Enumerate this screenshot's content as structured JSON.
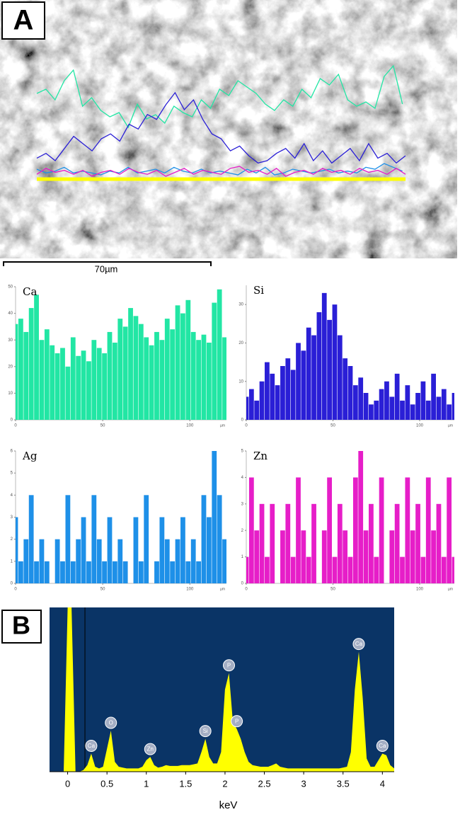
{
  "labels": {
    "panel_a": "A",
    "panel_b": "B",
    "scale_bar": "70µm"
  },
  "chart_data": [
    {
      "type": "bar",
      "title": "Ca",
      "color": "#22e6a4",
      "xlabel": "µm",
      "xlim": [
        0,
        121
      ],
      "ylim": [
        0,
        50
      ],
      "xticks": [
        0,
        50,
        100
      ],
      "yticks": [
        0,
        10,
        20,
        30,
        40,
        50
      ],
      "x": [
        0,
        3,
        6,
        9,
        12,
        15,
        18,
        21,
        24,
        27,
        30,
        33,
        36,
        39,
        42,
        45,
        48,
        51,
        54,
        57,
        60,
        63,
        66,
        69,
        72,
        75,
        78,
        81,
        84,
        87,
        90,
        93,
        96,
        99,
        102,
        105,
        108,
        111,
        114,
        117,
        120
      ],
      "values": [
        36,
        38,
        33,
        42,
        47,
        30,
        34,
        28,
        25,
        27,
        20,
        31,
        24,
        26,
        22,
        30,
        27,
        25,
        33,
        29,
        38,
        35,
        42,
        39,
        36,
        31,
        28,
        33,
        30,
        38,
        34,
        43,
        40,
        45,
        33,
        30,
        32,
        29,
        44,
        49,
        31
      ]
    },
    {
      "type": "bar",
      "title": "Si",
      "color": "#2a1fd6",
      "xlabel": "µm",
      "xlim": [
        0,
        120
      ],
      "ylim": [
        0,
        35
      ],
      "xticks": [
        0,
        50,
        100
      ],
      "yticks": [
        0,
        10,
        20,
        30
      ],
      "x": [
        0,
        3,
        6,
        9,
        12,
        15,
        18,
        21,
        24,
        27,
        30,
        33,
        36,
        39,
        42,
        45,
        48,
        51,
        54,
        57,
        60,
        63,
        66,
        69,
        72,
        75,
        78,
        81,
        84,
        87,
        90,
        93,
        96,
        99,
        102,
        105,
        108,
        111,
        114,
        117,
        120
      ],
      "values": [
        6,
        8,
        5,
        10,
        15,
        12,
        9,
        14,
        16,
        13,
        20,
        18,
        24,
        22,
        28,
        33,
        26,
        30,
        22,
        16,
        14,
        9,
        11,
        7,
        4,
        5,
        8,
        10,
        6,
        12,
        5,
        9,
        4,
        7,
        10,
        5,
        12,
        6,
        8,
        4,
        7
      ]
    },
    {
      "type": "bar",
      "title": "Ag",
      "color": "#1e90e8",
      "xlabel": "µm",
      "xlim": [
        0,
        121
      ],
      "ylim": [
        0,
        6
      ],
      "xticks": [
        0,
        50,
        100
      ],
      "yticks": [
        0,
        1,
        2,
        3,
        4,
        5,
        6
      ],
      "x": [
        0,
        3,
        6,
        9,
        12,
        15,
        18,
        21,
        24,
        27,
        30,
        33,
        36,
        39,
        42,
        45,
        48,
        51,
        54,
        57,
        60,
        63,
        66,
        69,
        72,
        75,
        78,
        81,
        84,
        87,
        90,
        93,
        96,
        99,
        102,
        105,
        108,
        111,
        114,
        117,
        120
      ],
      "values": [
        3,
        1,
        2,
        4,
        1,
        2,
        1,
        0,
        2,
        1,
        4,
        1,
        2,
        3,
        1,
        4,
        2,
        1,
        3,
        1,
        2,
        1,
        0,
        3,
        1,
        4,
        0,
        1,
        3,
        2,
        1,
        2,
        3,
        1,
        2,
        1,
        4,
        3,
        6,
        4,
        2
      ]
    },
    {
      "type": "bar",
      "title": "Zn",
      "color": "#e61ec8",
      "xlabel": "µm",
      "xlim": [
        0,
        120
      ],
      "ylim": [
        0,
        5
      ],
      "xticks": [
        0,
        50,
        100
      ],
      "yticks": [
        0,
        1,
        2,
        3,
        4,
        5
      ],
      "x": [
        0,
        3,
        6,
        9,
        12,
        15,
        18,
        21,
        24,
        27,
        30,
        33,
        36,
        39,
        42,
        45,
        48,
        51,
        54,
        57,
        60,
        63,
        66,
        69,
        72,
        75,
        78,
        81,
        84,
        87,
        90,
        93,
        96,
        99,
        102,
        105,
        108,
        111,
        114,
        117,
        120
      ],
      "values": [
        1,
        4,
        2,
        3,
        1,
        3,
        0,
        2,
        3,
        1,
        4,
        2,
        1,
        3,
        0,
        2,
        4,
        1,
        3,
        2,
        1,
        4,
        5,
        2,
        3,
        1,
        4,
        0,
        2,
        3,
        1,
        4,
        2,
        3,
        1,
        4,
        2,
        3,
        1,
        4,
        1
      ]
    },
    {
      "type": "area",
      "color": "#ffff00",
      "background": "#0a3466",
      "xlabel": "keV",
      "xlim": [
        -0.23,
        4.15
      ],
      "ylim": [
        0,
        100
      ],
      "xticks": [
        0,
        0.5,
        1,
        1.5,
        2,
        2.5,
        3,
        3.5,
        4
      ],
      "x": [
        -0.2,
        -0.15,
        -0.1,
        -0.05,
        0,
        0.05,
        0.1,
        0.15,
        0.2,
        0.25,
        0.3,
        0.35,
        0.4,
        0.45,
        0.5,
        0.55,
        0.6,
        0.65,
        0.7,
        0.75,
        0.8,
        0.85,
        0.9,
        0.95,
        1,
        1.05,
        1.1,
        1.15,
        1.2,
        1.25,
        1.3,
        1.35,
        1.4,
        1.45,
        1.5,
        1.55,
        1.6,
        1.65,
        1.7,
        1.75,
        1.8,
        1.85,
        1.9,
        1.95,
        2,
        2.05,
        2.1,
        2.15,
        2.2,
        2.25,
        2.3,
        2.35,
        2.4,
        2.45,
        2.5,
        2.55,
        2.6,
        2.65,
        2.7,
        2.75,
        2.8,
        2.85,
        2.9,
        2.95,
        3,
        3.05,
        3.1,
        3.15,
        3.2,
        3.25,
        3.3,
        3.35,
        3.4,
        3.45,
        3.5,
        3.55,
        3.6,
        3.65,
        3.7,
        3.75,
        3.8,
        3.85,
        3.9,
        3.95,
        4,
        4.05,
        4.1,
        4.15
      ],
      "values": [
        0,
        0,
        0,
        0,
        100,
        100,
        0,
        0,
        1,
        4,
        11,
        3,
        2,
        3,
        14,
        25,
        6,
        3,
        2.5,
        2,
        2,
        2,
        2,
        3,
        7,
        9,
        4,
        2.5,
        3,
        4,
        3.5,
        3.5,
        3.5,
        4,
        4,
        4,
        4.5,
        5,
        12,
        20,
        9,
        5,
        5,
        12,
        50,
        60,
        30,
        26,
        20,
        12,
        6,
        4,
        3.5,
        3,
        3,
        3,
        4,
        5,
        3,
        2.5,
        2,
        2,
        2,
        2,
        2,
        2,
        2,
        2,
        2,
        2,
        2,
        2,
        2,
        2,
        2.5,
        3,
        12,
        50,
        73,
        45,
        8,
        3,
        3,
        7,
        11,
        10,
        4,
        2
      ],
      "peaks": [
        {
          "label": "Ca",
          "x": 0.3
        },
        {
          "label": "O",
          "x": 0.55
        },
        {
          "label": "Zn",
          "x": 1.05
        },
        {
          "label": "Si",
          "x": 1.75
        },
        {
          "label": "P",
          "x": 2.05
        },
        {
          "label": "P",
          "x": 2.15
        },
        {
          "label": "Ca",
          "x": 3.7
        },
        {
          "label": "Ca",
          "x": 4.0
        }
      ]
    }
  ]
}
